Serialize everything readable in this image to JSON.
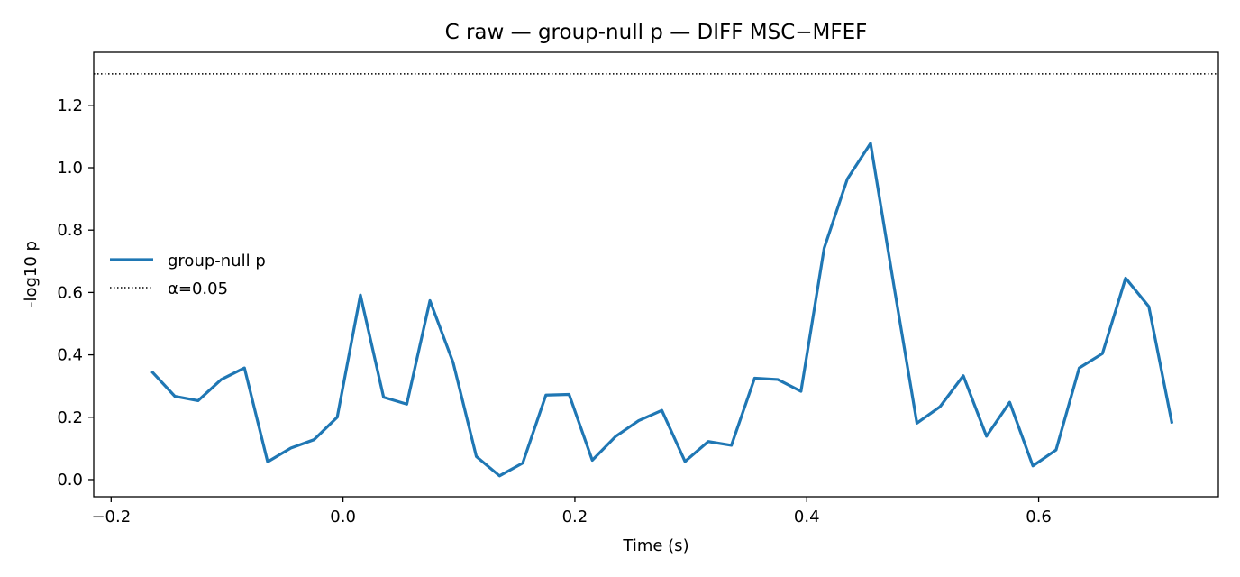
{
  "chart_data": {
    "type": "line",
    "title": "C raw — group-null p — DIFF MSC−MFEF",
    "xlabel": "Time (s)",
    "ylabel": "-log10 p",
    "xlim": [
      -0.215,
      0.755
    ],
    "ylim": [
      -0.055,
      1.37
    ],
    "xticks": [
      -0.2,
      0.0,
      0.2,
      0.4,
      0.6
    ],
    "xtick_labels": [
      "−0.2",
      "0.0",
      "0.2",
      "0.4",
      "0.6"
    ],
    "yticks": [
      0.0,
      0.2,
      0.4,
      0.6,
      0.8,
      1.0,
      1.2
    ],
    "ytick_labels": [
      "0.0",
      "0.2",
      "0.4",
      "0.6",
      "0.8",
      "1.0",
      "1.2"
    ],
    "grid": false,
    "legend_position": "center-left",
    "series": [
      {
        "name": "group-null p",
        "color": "#1f77b4",
        "style": "solid",
        "x": [
          -0.165,
          -0.145,
          -0.125,
          -0.105,
          -0.085,
          -0.065,
          -0.045,
          -0.025,
          -0.005,
          0.015,
          0.035,
          0.055,
          0.075,
          0.095,
          0.115,
          0.135,
          0.155,
          0.175,
          0.195,
          0.215,
          0.235,
          0.255,
          0.275,
          0.295,
          0.315,
          0.335,
          0.355,
          0.375,
          0.395,
          0.415,
          0.435,
          0.455,
          0.475,
          0.495,
          0.515,
          0.535,
          0.555,
          0.575,
          0.595,
          0.615,
          0.635,
          0.655,
          0.675,
          0.695,
          0.715
        ],
        "y": [
          0.347,
          0.267,
          0.253,
          0.321,
          0.358,
          0.057,
          0.101,
          0.128,
          0.2,
          0.592,
          0.264,
          0.242,
          0.574,
          0.375,
          0.074,
          0.012,
          0.053,
          0.271,
          0.273,
          0.062,
          0.138,
          0.189,
          0.222,
          0.058,
          0.122,
          0.11,
          0.325,
          0.321,
          0.283,
          0.742,
          0.964,
          1.078,
          0.625,
          0.181,
          0.234,
          0.333,
          0.139,
          0.248,
          0.044,
          0.095,
          0.358,
          0.404,
          0.646,
          0.555,
          0.18
        ]
      },
      {
        "name": "α=0.05",
        "color": "#000000",
        "style": "dotted",
        "hline": 1.301
      }
    ]
  }
}
